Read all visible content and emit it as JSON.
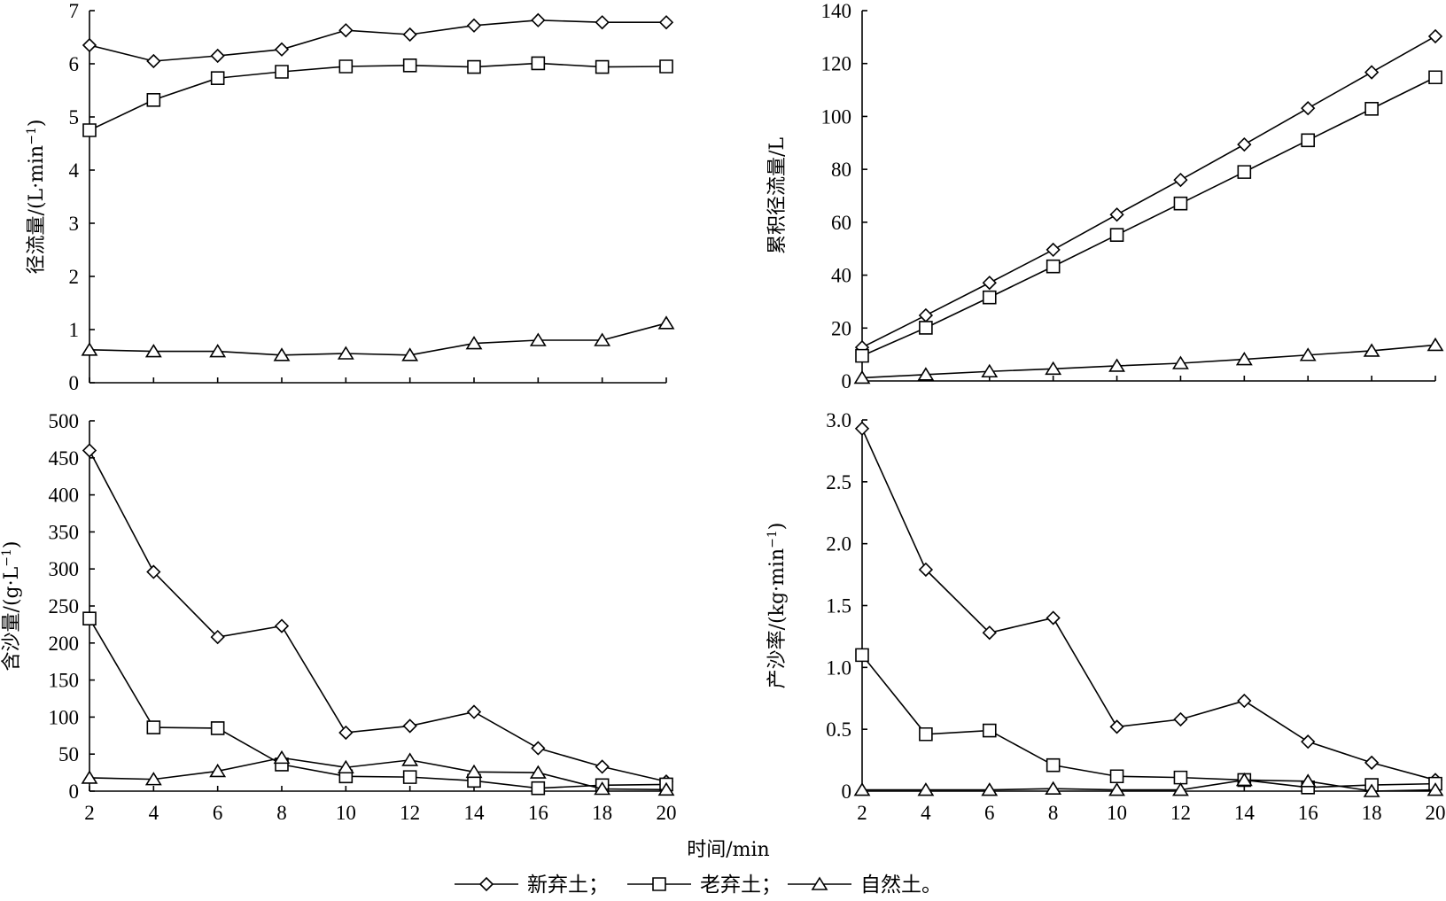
{
  "figure": {
    "shared_xlabel": "时间/min",
    "legend": [
      {
        "name": "新弃土",
        "marker": "diamond",
        "suffix": "；"
      },
      {
        "name": "老弃土",
        "marker": "square",
        "suffix": "；"
      },
      {
        "name": "自然土",
        "marker": "triangle",
        "suffix": "。"
      }
    ]
  },
  "chart_data": [
    {
      "id": "runoff",
      "type": "line",
      "title": "",
      "ylabel": "径流量/(L·min",
      "ylabel_sup": "−1",
      "ylabel_close": ")",
      "xlabel": "",
      "x": [
        2,
        4,
        6,
        8,
        10,
        12,
        14,
        16,
        18,
        20
      ],
      "ylim": [
        0,
        7
      ],
      "yticks": [
        0,
        1,
        2,
        3,
        4,
        5,
        6,
        7
      ],
      "ytick_labels": [
        "0",
        "1",
        "2",
        "3",
        "4",
        "5",
        "6",
        "7"
      ],
      "show_xtick_labels": false,
      "series": [
        {
          "name": "新弃土",
          "marker": "diamond",
          "values": [
            6.35,
            6.05,
            6.15,
            6.27,
            6.63,
            6.55,
            6.72,
            6.82,
            6.78,
            6.78
          ]
        },
        {
          "name": "老弃土",
          "marker": "square",
          "values": [
            4.75,
            5.32,
            5.73,
            5.85,
            5.95,
            5.97,
            5.94,
            6.01,
            5.94,
            5.95
          ]
        },
        {
          "name": "自然土",
          "marker": "triangle",
          "values": [
            0.62,
            0.59,
            0.59,
            0.52,
            0.55,
            0.52,
            0.74,
            0.8,
            0.8,
            1.12
          ]
        }
      ]
    },
    {
      "id": "cumulative",
      "type": "line",
      "title": "",
      "ylabel": "累积径流量/L",
      "xlabel": "",
      "x": [
        2,
        4,
        6,
        8,
        10,
        12,
        14,
        16,
        18,
        20
      ],
      "ylim": [
        0,
        140
      ],
      "yticks": [
        0,
        20,
        40,
        60,
        80,
        100,
        120,
        140
      ],
      "ytick_labels": [
        "0",
        "20",
        "40",
        "60",
        "80",
        "100",
        "120",
        "140"
      ],
      "show_xtick_labels": false,
      "series": [
        {
          "name": "新弃土",
          "marker": "diamond",
          "values": [
            12.7,
            24.8,
            37.1,
            49.6,
            62.9,
            76.0,
            89.4,
            103.1,
            116.7,
            130.3
          ]
        },
        {
          "name": "老弃土",
          "marker": "square",
          "values": [
            9.5,
            20.1,
            31.6,
            43.3,
            55.2,
            67.1,
            79.0,
            91.0,
            102.9,
            114.8
          ]
        },
        {
          "name": "自然土",
          "marker": "triangle",
          "values": [
            1.2,
            2.4,
            3.6,
            4.6,
            5.7,
            6.7,
            8.2,
            9.8,
            11.4,
            13.6
          ]
        }
      ]
    },
    {
      "id": "sediment-concentration",
      "type": "line",
      "title": "",
      "ylabel": "含沙量/(g·L",
      "ylabel_sup": "−1",
      "ylabel_close": ")",
      "xlabel": "",
      "x": [
        2,
        4,
        6,
        8,
        10,
        12,
        14,
        16,
        18,
        20
      ],
      "ylim": [
        0,
        500
      ],
      "yticks": [
        0,
        50,
        100,
        150,
        200,
        250,
        300,
        350,
        400,
        450,
        500
      ],
      "ytick_labels": [
        "0",
        "50",
        "100",
        "150",
        "200",
        "250",
        "300",
        "350",
        "400",
        "450",
        "500"
      ],
      "show_xtick_labels": true,
      "xtick_labels": [
        "2",
        "4",
        "6",
        "8",
        "10",
        "12",
        "14",
        "16",
        "18",
        "20"
      ],
      "series": [
        {
          "name": "新弃土",
          "marker": "diamond",
          "values": [
            460,
            296,
            208,
            223,
            79,
            88,
            107,
            58,
            33,
            13
          ]
        },
        {
          "name": "老弃土",
          "marker": "square",
          "values": [
            233,
            86,
            85,
            36,
            20,
            19,
            14,
            4,
            8,
            9
          ]
        },
        {
          "name": "自然土",
          "marker": "triangle",
          "values": [
            18,
            16,
            27,
            45,
            32,
            42,
            26,
            25,
            3,
            2
          ]
        }
      ]
    },
    {
      "id": "sediment-yield-rate",
      "type": "line",
      "title": "",
      "ylabel": "产沙率/(kg·min",
      "ylabel_sup": "−1",
      "ylabel_close": ")",
      "xlabel": "",
      "x": [
        2,
        4,
        6,
        8,
        10,
        12,
        14,
        16,
        18,
        20
      ],
      "ylim": [
        0,
        3.0
      ],
      "yticks": [
        0,
        0.5,
        1.0,
        1.5,
        2.0,
        2.5,
        3.0
      ],
      "ytick_labels": [
        "0",
        "0.5",
        "1.0",
        "1.5",
        "2.0",
        "2.5",
        "3.0"
      ],
      "show_xtick_labels": true,
      "xtick_labels": [
        "2",
        "4",
        "6",
        "8",
        "10",
        "12",
        "14",
        "16",
        "18",
        "20"
      ],
      "series": [
        {
          "name": "新弃土",
          "marker": "diamond",
          "values": [
            2.93,
            1.79,
            1.28,
            1.4,
            0.52,
            0.58,
            0.73,
            0.4,
            0.23,
            0.09
          ]
        },
        {
          "name": "老弃土",
          "marker": "square",
          "values": [
            1.1,
            0.46,
            0.49,
            0.21,
            0.12,
            0.11,
            0.09,
            0.03,
            0.05,
            0.06
          ]
        },
        {
          "name": "自然土",
          "marker": "triangle",
          "values": [
            0.01,
            0.01,
            0.01,
            0.02,
            0.01,
            0.01,
            0.09,
            0.08,
            0.0,
            0.01
          ]
        }
      ]
    }
  ]
}
